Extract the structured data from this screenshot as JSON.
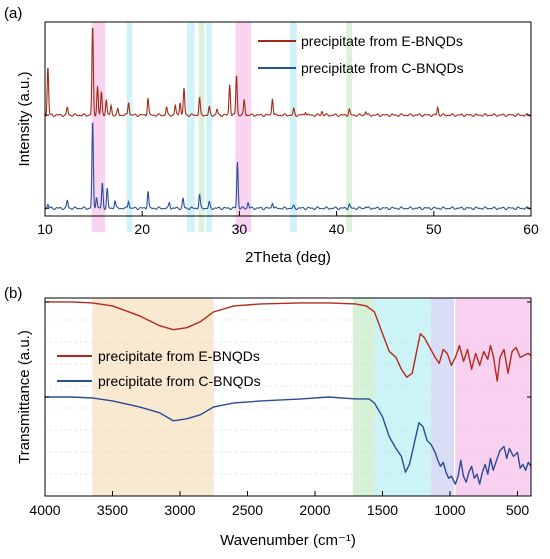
{
  "chart_data": [
    {
      "panel_label": "(a)",
      "type": "line",
      "xlabel": "2Theta (deg)",
      "ylabel": "Intensity (a.u.)",
      "xlim": [
        10,
        60
      ],
      "x_ticks": [
        10,
        20,
        30,
        40,
        50,
        60
      ],
      "legend_position": "top-right",
      "highlight_bands": [
        {
          "from": 14.8,
          "to": 16.2,
          "color": "#f6c6ec"
        },
        {
          "from": 18.4,
          "to": 19.0,
          "color": "#bfeff7"
        },
        {
          "from": 24.6,
          "to": 25.4,
          "color": "#bfeff7"
        },
        {
          "from": 25.8,
          "to": 26.4,
          "color": "#cdeecf"
        },
        {
          "from": 26.6,
          "to": 27.2,
          "color": "#bfeff7"
        },
        {
          "from": 29.6,
          "to": 31.2,
          "color": "#f6c6ec"
        },
        {
          "from": 35.2,
          "to": 35.9,
          "color": "#bfeff7"
        },
        {
          "from": 41.0,
          "to": 41.6,
          "color": "#cdeecf"
        }
      ],
      "series": [
        {
          "name": "precipitate from E-BNQDs",
          "color": "#a32a17",
          "baseline": 0.52,
          "scale": 0.45,
          "peaks": [
            {
              "x": 10.3,
              "h": 0.25
            },
            {
              "x": 12.3,
              "h": 0.04
            },
            {
              "x": 14.9,
              "h": 0.46
            },
            {
              "x": 15.4,
              "h": 0.15
            },
            {
              "x": 15.8,
              "h": 0.12
            },
            {
              "x": 16.3,
              "h": 0.08
            },
            {
              "x": 16.8,
              "h": 0.05
            },
            {
              "x": 17.5,
              "h": 0.03
            },
            {
              "x": 18.6,
              "h": 0.07
            },
            {
              "x": 20.6,
              "h": 0.09
            },
            {
              "x": 22.5,
              "h": 0.04
            },
            {
              "x": 23.4,
              "h": 0.05
            },
            {
              "x": 23.9,
              "h": 0.07
            },
            {
              "x": 24.3,
              "h": 0.14
            },
            {
              "x": 25.9,
              "h": 0.09
            },
            {
              "x": 26.9,
              "h": 0.04
            },
            {
              "x": 27.7,
              "h": 0.03
            },
            {
              "x": 29.0,
              "h": 0.16
            },
            {
              "x": 29.7,
              "h": 0.21
            },
            {
              "x": 30.5,
              "h": 0.08
            },
            {
              "x": 33.4,
              "h": 0.09
            },
            {
              "x": 35.6,
              "h": 0.03
            },
            {
              "x": 36.8,
              "h": 0.02
            },
            {
              "x": 38.5,
              "h": 0.02
            },
            {
              "x": 41.3,
              "h": 0.03
            },
            {
              "x": 43.0,
              "h": 0.02
            },
            {
              "x": 50.4,
              "h": 0.04
            }
          ]
        },
        {
          "name": "precipitate from C-BNQDs",
          "color": "#2a4f9c",
          "baseline": 0.04,
          "scale": 0.45,
          "peaks": [
            {
              "x": 10.3,
              "h": 0.02
            },
            {
              "x": 12.3,
              "h": 0.04
            },
            {
              "x": 14.9,
              "h": 0.45
            },
            {
              "x": 15.3,
              "h": 0.06
            },
            {
              "x": 15.9,
              "h": 0.13
            },
            {
              "x": 16.4,
              "h": 0.1
            },
            {
              "x": 17.2,
              "h": 0.04
            },
            {
              "x": 18.6,
              "h": 0.04
            },
            {
              "x": 20.6,
              "h": 0.09
            },
            {
              "x": 22.8,
              "h": 0.03
            },
            {
              "x": 24.2,
              "h": 0.05
            },
            {
              "x": 25.9,
              "h": 0.07
            },
            {
              "x": 26.9,
              "h": 0.03
            },
            {
              "x": 29.8,
              "h": 0.24
            },
            {
              "x": 30.9,
              "h": 0.03
            },
            {
              "x": 33.4,
              "h": 0.03
            },
            {
              "x": 35.6,
              "h": 0.01
            },
            {
              "x": 41.3,
              "h": 0.02
            },
            {
              "x": 43.0,
              "h": 0.01
            }
          ]
        }
      ]
    },
    {
      "panel_label": "(b)",
      "type": "line",
      "xlabel": "Wavenumber (cm⁻¹)",
      "ylabel": "Transmittance (a.u.)",
      "xlim": [
        4000,
        400
      ],
      "x_ticks": [
        4000,
        3500,
        3000,
        2500,
        2000,
        1500,
        1000,
        500
      ],
      "legend_position": "center-left",
      "highlight_bands": [
        {
          "from": 3650,
          "to": 2750,
          "color": "#f8e3c6"
        },
        {
          "from": 1720,
          "to": 1560,
          "color": "#cdeecf"
        },
        {
          "from": 1560,
          "to": 1140,
          "color": "#bff1f5"
        },
        {
          "from": 1140,
          "to": 970,
          "color": "#cfd4f3"
        },
        {
          "from": 960,
          "to": 400,
          "color": "#f6c6ec"
        }
      ],
      "series": [
        {
          "name": "precipitate from E-BNQDs",
          "color": "#b32a1c",
          "points": [
            [
              4000,
              0.98
            ],
            [
              3800,
              0.98
            ],
            [
              3650,
              0.975
            ],
            [
              3500,
              0.96
            ],
            [
              3300,
              0.91
            ],
            [
              3150,
              0.86
            ],
            [
              3050,
              0.84
            ],
            [
              2950,
              0.85
            ],
            [
              2850,
              0.88
            ],
            [
              2750,
              0.93
            ],
            [
              2600,
              0.96
            ],
            [
              2400,
              0.97
            ],
            [
              2100,
              0.975
            ],
            [
              1900,
              0.975
            ],
            [
              1700,
              0.97
            ],
            [
              1620,
              0.96
            ],
            [
              1560,
              0.93
            ],
            [
              1500,
              0.82
            ],
            [
              1450,
              0.73
            ],
            [
              1400,
              0.7
            ],
            [
              1360,
              0.64
            ],
            [
              1320,
              0.6
            ],
            [
              1280,
              0.62
            ],
            [
              1250,
              0.72
            ],
            [
              1220,
              0.82
            ],
            [
              1190,
              0.8
            ],
            [
              1150,
              0.75
            ],
            [
              1110,
              0.7
            ],
            [
              1080,
              0.67
            ],
            [
              1050,
              0.74
            ],
            [
              1020,
              0.72
            ],
            [
              990,
              0.66
            ],
            [
              960,
              0.7
            ],
            [
              930,
              0.76
            ],
            [
              900,
              0.68
            ],
            [
              870,
              0.74
            ],
            [
              840,
              0.64
            ],
            [
              810,
              0.72
            ],
            [
              780,
              0.66
            ],
            [
              750,
              0.73
            ],
            [
              720,
              0.69
            ],
            [
              700,
              0.76
            ],
            [
              680,
              0.71
            ],
            [
              650,
              0.58
            ],
            [
              630,
              0.7
            ],
            [
              600,
              0.74
            ],
            [
              570,
              0.62
            ],
            [
              540,
              0.73
            ],
            [
              510,
              0.75
            ],
            [
              480,
              0.7
            ],
            [
              450,
              0.71
            ],
            [
              420,
              0.72
            ],
            [
              400,
              0.71
            ]
          ]
        },
        {
          "name": "precipitate from C-BNQDs",
          "color": "#2a4c92",
          "points": [
            [
              4000,
              0.5
            ],
            [
              3800,
              0.5
            ],
            [
              3650,
              0.495
            ],
            [
              3500,
              0.48
            ],
            [
              3300,
              0.45
            ],
            [
              3150,
              0.42
            ],
            [
              3050,
              0.38
            ],
            [
              2950,
              0.39
            ],
            [
              2850,
              0.41
            ],
            [
              2750,
              0.45
            ],
            [
              2600,
              0.47
            ],
            [
              2400,
              0.48
            ],
            [
              2100,
              0.49
            ],
            [
              1900,
              0.5
            ],
            [
              1700,
              0.49
            ],
            [
              1600,
              0.49
            ],
            [
              1560,
              0.47
            ],
            [
              1500,
              0.4
            ],
            [
              1450,
              0.3
            ],
            [
              1400,
              0.24
            ],
            [
              1360,
              0.2
            ],
            [
              1330,
              0.12
            ],
            [
              1300,
              0.16
            ],
            [
              1260,
              0.28
            ],
            [
              1230,
              0.37
            ],
            [
              1200,
              0.35
            ],
            [
              1170,
              0.28
            ],
            [
              1140,
              0.26
            ],
            [
              1110,
              0.22
            ],
            [
              1090,
              0.18
            ],
            [
              1070,
              0.15
            ],
            [
              1050,
              0.17
            ],
            [
              1030,
              0.12
            ],
            [
              1010,
              0.09
            ],
            [
              990,
              0.1
            ],
            [
              960,
              0.06
            ],
            [
              940,
              0.1
            ],
            [
              920,
              0.18
            ],
            [
              900,
              0.1
            ],
            [
              880,
              0.07
            ],
            [
              860,
              0.12
            ],
            [
              840,
              0.15
            ],
            [
              820,
              0.09
            ],
            [
              800,
              0.11
            ],
            [
              780,
              0.06
            ],
            [
              760,
              0.12
            ],
            [
              740,
              0.16
            ],
            [
              720,
              0.11
            ],
            [
              700,
              0.19
            ],
            [
              680,
              0.13
            ],
            [
              650,
              0.19
            ],
            [
              630,
              0.23
            ],
            [
              600,
              0.25
            ],
            [
              580,
              0.19
            ],
            [
              560,
              0.24
            ],
            [
              530,
              0.2
            ],
            [
              500,
              0.22
            ],
            [
              480,
              0.14
            ],
            [
              460,
              0.16
            ],
            [
              440,
              0.13
            ],
            [
              420,
              0.17
            ],
            [
              400,
              0.15
            ]
          ]
        }
      ]
    }
  ]
}
